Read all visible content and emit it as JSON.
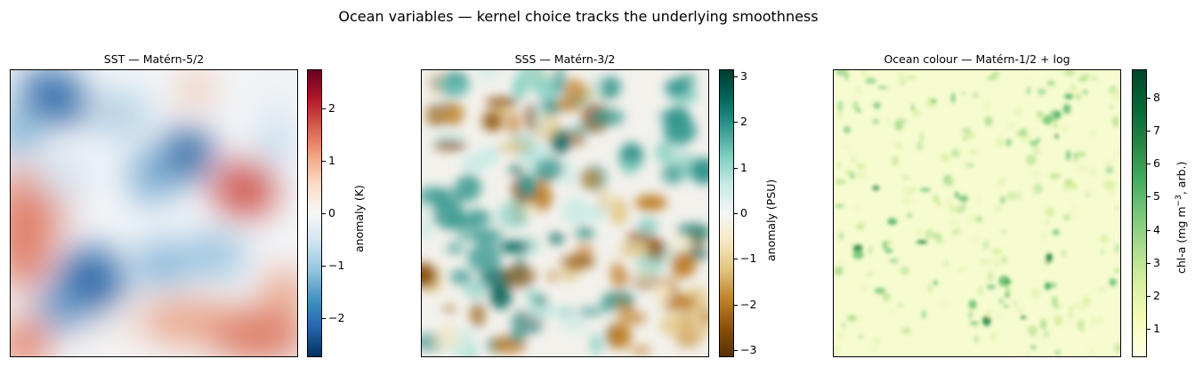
{
  "figure": {
    "suptitle": "Ocean variables — kernel choice tracks the underlying smoothness"
  },
  "chart_data": [
    {
      "type": "heatmap",
      "title": "SST — Matérn-5/2",
      "kernel": "Matérn-5/2",
      "colormap": "RdBu_r",
      "colorbar_label": "anomaly (K)",
      "colorbar_range": [
        -2.75,
        2.75
      ],
      "colorbar_ticks": [
        2,
        1,
        0,
        -1,
        -2
      ],
      "colorbar_tick_labels": [
        "2",
        "1",
        "0",
        "−1",
        "−2"
      ],
      "field_summary": {
        "min": -2.75,
        "max": 2.75,
        "smoothness": "smooth"
      },
      "axes_ticks": "none"
    },
    {
      "type": "heatmap",
      "title": "SSS — Matérn-3/2",
      "kernel": "Matérn-3/2",
      "colormap": "BrBG",
      "colorbar_label": "anomaly (PSU)",
      "colorbar_range": [
        -3.15,
        3.15
      ],
      "colorbar_ticks": [
        3,
        2,
        1,
        0,
        -1,
        -2,
        -3
      ],
      "colorbar_tick_labels": [
        "3",
        "2",
        "1",
        "0",
        "−1",
        "−2",
        "−3"
      ],
      "field_summary": {
        "min": -3.15,
        "max": 3.15,
        "smoothness": "moderate"
      },
      "axes_ticks": "none"
    },
    {
      "type": "heatmap",
      "title": "Ocean colour — Matérn-1/2 + log",
      "kernel": "Matérn-1/2 + log",
      "colormap": "YlGn",
      "colorbar_label_main": "chl-a (mg m",
      "colorbar_label_sup": "−3",
      "colorbar_label_tail": ", arb.)",
      "colorbar_range": [
        0.15,
        8.85
      ],
      "colorbar_ticks": [
        8,
        7,
        6,
        5,
        4,
        3,
        2,
        1
      ],
      "colorbar_tick_labels": [
        "8",
        "7",
        "6",
        "5",
        "4",
        "3",
        "2",
        "1"
      ],
      "field_summary": {
        "min": 0.15,
        "max": 8.85,
        "smoothness": "rough"
      },
      "axes_ticks": "none"
    }
  ]
}
